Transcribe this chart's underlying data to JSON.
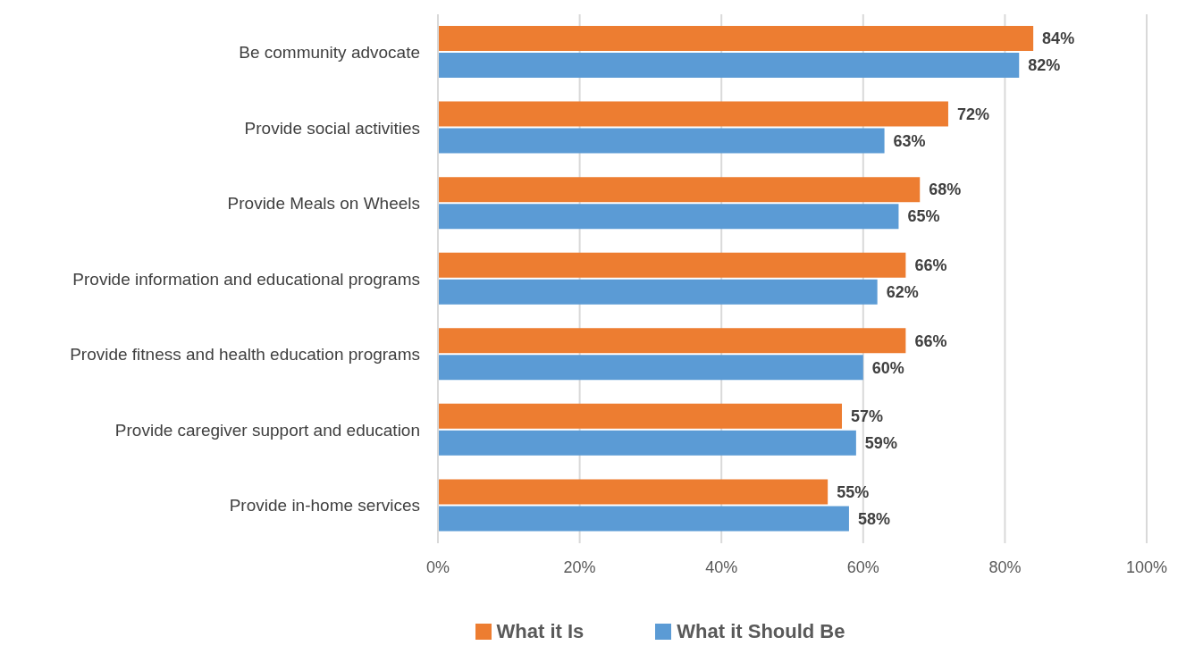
{
  "chart_data": {
    "type": "bar",
    "orientation": "horizontal",
    "categories": [
      "Be community advocate",
      "Provide social activities",
      "Provide Meals on Wheels",
      "Provide information and educational programs",
      "Provide fitness and health education programs",
      "Provide caregiver support and education",
      "Provide in-home services"
    ],
    "series": [
      {
        "name": "What it Is",
        "color": "#ed7d31",
        "values": [
          84,
          72,
          68,
          66,
          66,
          57,
          55
        ],
        "value_labels": [
          "84%",
          "72%",
          "68%",
          "66%",
          "66%",
          "57%",
          "55%"
        ]
      },
      {
        "name": "What it Should Be",
        "color": "#5b9bd5",
        "values": [
          82,
          63,
          65,
          62,
          60,
          59,
          58
        ],
        "value_labels": [
          "82%",
          "63%",
          "65%",
          "62%",
          "60%",
          "59%",
          "58%"
        ]
      }
    ],
    "xlim": [
      0,
      100
    ],
    "xticks": [
      {
        "value": 0,
        "label": "0%"
      },
      {
        "value": 20,
        "label": "20%"
      },
      {
        "value": 40,
        "label": "40%"
      },
      {
        "value": 60,
        "label": "60%"
      },
      {
        "value": 80,
        "label": "80%"
      },
      {
        "value": 100,
        "label": "100%"
      }
    ],
    "grid": "x",
    "legend": "bottom"
  }
}
